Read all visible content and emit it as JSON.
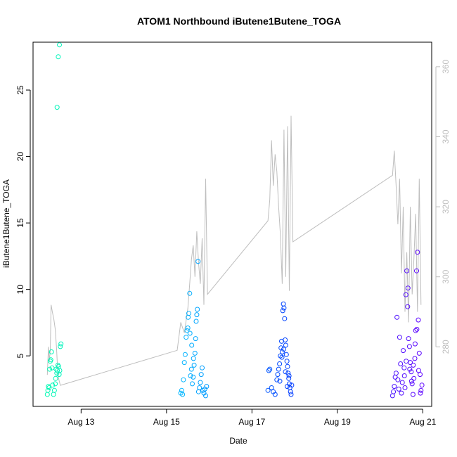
{
  "chart_data": {
    "type": "scatter",
    "title": "ATOM1 Northbound iButene1Butene_TOGA",
    "xlabel": "Date",
    "ylabel": "iButene1Butene_TOGA",
    "xlim": [
      "2016-08-11T21:00",
      "2016-08-21T05:00"
    ],
    "ylim": [
      1.2,
      28.6
    ],
    "y2lim": [
      263,
      367
    ],
    "x_ticks": [
      {
        "value": "2016-08-13",
        "label": "Aug 13"
      },
      {
        "value": "2016-08-15",
        "label": "Aug 15"
      },
      {
        "value": "2016-08-17",
        "label": "Aug 17"
      },
      {
        "value": "2016-08-19",
        "label": "Aug 19"
      },
      {
        "value": "2016-08-21",
        "label": "Aug 21"
      }
    ],
    "y_ticks": [
      5,
      10,
      15,
      20,
      25
    ],
    "y2_ticks": [
      280,
      300,
      320,
      340,
      360
    ],
    "grid": false,
    "legend": "none",
    "colors": {
      "points_gradient": [
        "#00ffaa",
        "#00c8ff",
        "#0033ff",
        "#6600ff"
      ],
      "secondary_line": "#bebebe",
      "secondary_axis": "#bebebe"
    },
    "series": [
      {
        "marker": "open-circle",
        "points": [
          [
            "2016-08-12T05:00",
            2.1
          ],
          [
            "2016-08-12T05:20",
            2.4
          ],
          [
            "2016-08-12T05:40",
            2.7
          ],
          [
            "2016-08-12T06:00",
            2.6
          ],
          [
            "2016-08-12T06:20",
            4.0
          ],
          [
            "2016-08-12T06:40",
            4.6
          ],
          [
            "2016-08-12T07:00",
            4.7
          ],
          [
            "2016-08-12T07:20",
            5.3
          ],
          [
            "2016-08-12T07:40",
            4.1
          ],
          [
            "2016-08-12T08:00",
            2.8
          ],
          [
            "2016-08-12T08:30",
            2.1
          ],
          [
            "2016-08-12T09:00",
            2.4
          ],
          [
            "2016-08-12T09:30",
            2.9
          ],
          [
            "2016-08-12T09:40",
            3.3
          ],
          [
            "2016-08-12T10:00",
            4.0
          ],
          [
            "2016-08-12T10:20",
            3.7
          ],
          [
            "2016-08-12T10:40",
            3.9
          ],
          [
            "2016-08-12T11:00",
            4.3
          ],
          [
            "2016-08-12T11:20",
            4.2
          ],
          [
            "2016-08-12T11:40",
            3.6
          ],
          [
            "2016-08-12T12:00",
            3.9
          ],
          [
            "2016-08-12T12:20",
            5.7
          ],
          [
            "2016-08-12T12:40",
            5.9
          ],
          [
            "2016-08-12T10:30",
            23.7
          ],
          [
            "2016-08-12T11:10",
            27.5
          ],
          [
            "2016-08-12T11:50",
            28.4
          ],
          [
            "2016-08-15T08:00",
            2.2
          ],
          [
            "2016-08-15T08:30",
            2.4
          ],
          [
            "2016-08-15T09:00",
            2.1
          ],
          [
            "2016-08-15T09:30",
            3.2
          ],
          [
            "2016-08-15T10:00",
            4.5
          ],
          [
            "2016-08-15T10:30",
            5.1
          ],
          [
            "2016-08-15T11:00",
            6.4
          ],
          [
            "2016-08-15T11:30",
            6.9
          ],
          [
            "2016-08-15T12:00",
            7.1
          ],
          [
            "2016-08-15T12:30",
            8.2
          ],
          [
            "2016-08-15T13:00",
            9.7
          ],
          [
            "2016-08-15T13:30",
            3.5
          ],
          [
            "2016-08-15T14:00",
            4.0
          ],
          [
            "2016-08-15T14:30",
            2.9
          ],
          [
            "2016-08-15T15:00",
            3.4
          ],
          [
            "2016-08-15T15:30",
            4.3
          ],
          [
            "2016-08-15T16:00",
            5.2
          ],
          [
            "2016-08-15T16:20",
            6.3
          ],
          [
            "2016-08-15T16:40",
            7.6
          ],
          [
            "2016-08-15T17:00",
            8.1
          ],
          [
            "2016-08-15T17:20",
            8.5
          ],
          [
            "2016-08-15T17:40",
            12.1
          ],
          [
            "2016-08-15T18:00",
            2.3
          ],
          [
            "2016-08-15T18:30",
            2.6
          ],
          [
            "2016-08-15T19:00",
            3.0
          ],
          [
            "2016-08-15T19:30",
            3.6
          ],
          [
            "2016-08-15T20:00",
            4.1
          ],
          [
            "2016-08-15T20:30",
            2.4
          ],
          [
            "2016-08-15T21:00",
            2.2
          ],
          [
            "2016-08-15T21:30",
            2.5
          ],
          [
            "2016-08-15T22:00",
            2.0
          ],
          [
            "2016-08-15T22:30",
            2.7
          ],
          [
            "2016-08-15T12:10",
            7.9
          ],
          [
            "2016-08-15T13:10",
            6.7
          ],
          [
            "2016-08-15T14:10",
            5.8
          ],
          [
            "2016-08-15T15:10",
            4.8
          ],
          [
            "2016-08-17T09:00",
            2.4
          ],
          [
            "2016-08-17T09:30",
            3.9
          ],
          [
            "2016-08-17T10:00",
            4.0
          ],
          [
            "2016-08-17T11:00",
            2.6
          ],
          [
            "2016-08-17T12:00",
            2.3
          ],
          [
            "2016-08-17T13:00",
            2.1
          ],
          [
            "2016-08-17T14:00",
            3.2
          ],
          [
            "2016-08-17T14:30",
            3.6
          ],
          [
            "2016-08-17T15:00",
            4.0
          ],
          [
            "2016-08-17T15:30",
            4.4
          ],
          [
            "2016-08-17T16:00",
            5.0
          ],
          [
            "2016-08-17T16:20",
            5.6
          ],
          [
            "2016-08-17T16:40",
            6.1
          ],
          [
            "2016-08-17T17:00",
            5.3
          ],
          [
            "2016-08-17T17:20",
            8.4
          ],
          [
            "2016-08-17T17:40",
            8.9
          ],
          [
            "2016-08-17T18:00",
            8.6
          ],
          [
            "2016-08-17T18:20",
            7.8
          ],
          [
            "2016-08-17T18:40",
            6.2
          ],
          [
            "2016-08-17T19:00",
            5.8
          ],
          [
            "2016-08-17T19:20",
            5.1
          ],
          [
            "2016-08-17T19:40",
            4.6
          ],
          [
            "2016-08-17T20:00",
            4.2
          ],
          [
            "2016-08-17T20:20",
            3.7
          ],
          [
            "2016-08-17T20:40",
            3.3
          ],
          [
            "2016-08-17T21:00",
            2.9
          ],
          [
            "2016-08-17T21:20",
            2.6
          ],
          [
            "2016-08-17T21:40",
            2.3
          ],
          [
            "2016-08-17T22:00",
            2.1
          ],
          [
            "2016-08-17T22:20",
            2.8
          ],
          [
            "2016-08-17T15:40",
            3.1
          ],
          [
            "2016-08-17T16:50",
            4.9
          ],
          [
            "2016-08-17T17:50",
            5.5
          ],
          [
            "2016-08-17T18:50",
            3.8
          ],
          [
            "2016-08-17T19:50",
            2.7
          ],
          [
            "2016-08-17T20:50",
            3.5
          ],
          [
            "2016-08-20T07:00",
            2.0
          ],
          [
            "2016-08-20T07:30",
            2.3
          ],
          [
            "2016-08-20T08:00",
            2.7
          ],
          [
            "2016-08-20T08:30",
            3.4
          ],
          [
            "2016-08-20T09:00",
            3.7
          ],
          [
            "2016-08-20T09:30",
            7.9
          ],
          [
            "2016-08-20T10:00",
            3.2
          ],
          [
            "2016-08-20T10:30",
            2.5
          ],
          [
            "2016-08-20T11:00",
            6.4
          ],
          [
            "2016-08-20T11:30",
            4.4
          ],
          [
            "2016-08-20T12:00",
            2.2
          ],
          [
            "2016-08-20T12:30",
            3.0
          ],
          [
            "2016-08-20T13:00",
            5.4
          ],
          [
            "2016-08-20T13:30",
            4.1
          ],
          [
            "2016-08-20T14:00",
            2.6
          ],
          [
            "2016-08-20T14:30",
            9.6
          ],
          [
            "2016-08-20T15:00",
            11.4
          ],
          [
            "2016-08-20T15:30",
            8.7
          ],
          [
            "2016-08-20T16:00",
            6.3
          ],
          [
            "2016-08-20T16:30",
            5.7
          ],
          [
            "2016-08-20T17:00",
            4.5
          ],
          [
            "2016-08-20T17:30",
            3.8
          ],
          [
            "2016-08-20T18:00",
            2.9
          ],
          [
            "2016-08-20T18:30",
            2.1
          ],
          [
            "2016-08-20T19:00",
            3.3
          ],
          [
            "2016-08-20T19:30",
            4.8
          ],
          [
            "2016-08-20T20:00",
            6.9
          ],
          [
            "2016-08-20T20:30",
            11.4
          ],
          [
            "2016-08-20T21:00",
            12.8
          ],
          [
            "2016-08-20T21:30",
            7.7
          ],
          [
            "2016-08-20T22:00",
            5.2
          ],
          [
            "2016-08-20T22:30",
            3.6
          ],
          [
            "2016-08-20T23:00",
            2.4
          ],
          [
            "2016-08-20T23:30",
            2.8
          ],
          [
            "2016-08-20T15:40",
            10.1
          ],
          [
            "2016-08-20T16:40",
            4.0
          ],
          [
            "2016-08-20T17:40",
            3.1
          ],
          [
            "2016-08-20T18:40",
            4.3
          ],
          [
            "2016-08-20T19:40",
            5.9
          ],
          [
            "2016-08-20T20:40",
            7.0
          ],
          [
            "2016-08-20T21:40",
            3.9
          ],
          [
            "2016-08-20T22:40",
            2.2
          ],
          [
            "2016-08-20T13:40",
            3.5
          ],
          [
            "2016-08-20T14:40",
            4.6
          ]
        ]
      }
    ],
    "secondary_series": {
      "axis": "right",
      "style": "line",
      "points": [
        [
          "2016-08-12T05:00",
          272
        ],
        [
          "2016-08-12T05:40",
          280
        ],
        [
          "2016-08-12T06:10",
          276
        ],
        [
          "2016-08-12T06:40",
          279
        ],
        [
          "2016-08-12T07:10",
          292
        ],
        [
          "2016-08-12T07:50",
          290
        ],
        [
          "2016-08-12T08:40",
          288
        ],
        [
          "2016-08-12T09:30",
          285
        ],
        [
          "2016-08-12T10:10",
          280
        ],
        [
          "2016-08-12T10:40",
          275
        ],
        [
          "2016-08-12T11:20",
          271
        ],
        [
          "2016-08-12T12:20",
          269
        ],
        [
          "2016-08-15T06:00",
          279
        ],
        [
          "2016-08-15T08:00",
          287
        ],
        [
          "2016-08-15T10:00",
          284
        ],
        [
          "2016-08-15T12:00",
          291
        ],
        [
          "2016-08-15T13:00",
          298
        ],
        [
          "2016-08-15T14:00",
          305
        ],
        [
          "2016-08-15T15:00",
          309
        ],
        [
          "2016-08-15T16:00",
          300
        ],
        [
          "2016-08-15T17:00",
          313
        ],
        [
          "2016-08-15T18:00",
          304
        ],
        [
          "2016-08-15T19:00",
          298
        ],
        [
          "2016-08-15T20:00",
          311
        ],
        [
          "2016-08-15T21:00",
          292
        ],
        [
          "2016-08-15T22:00",
          328
        ],
        [
          "2016-08-15T23:00",
          295
        ],
        [
          "2016-08-17T09:00",
          316
        ],
        [
          "2016-08-17T10:00",
          322
        ],
        [
          "2016-08-17T11:00",
          339
        ],
        [
          "2016-08-17T12:00",
          326
        ],
        [
          "2016-08-17T13:00",
          335
        ],
        [
          "2016-08-17T14:00",
          330
        ],
        [
          "2016-08-17T15:00",
          320
        ],
        [
          "2016-08-17T16:00",
          312
        ],
        [
          "2016-08-17T17:00",
          298
        ],
        [
          "2016-08-17T18:00",
          342
        ],
        [
          "2016-08-17T19:00",
          300
        ],
        [
          "2016-08-17T20:00",
          343
        ],
        [
          "2016-08-17T21:00",
          296
        ],
        [
          "2016-08-17T22:00",
          346
        ],
        [
          "2016-08-17T23:00",
          310
        ],
        [
          "2016-08-20T07:00",
          329
        ],
        [
          "2016-08-20T08:00",
          336
        ],
        [
          "2016-08-20T09:00",
          326
        ],
        [
          "2016-08-20T10:00",
          315
        ],
        [
          "2016-08-20T11:00",
          328
        ],
        [
          "2016-08-20T12:00",
          301
        ],
        [
          "2016-08-20T13:00",
          320
        ],
        [
          "2016-08-20T14:00",
          290
        ],
        [
          "2016-08-20T15:00",
          307
        ],
        [
          "2016-08-20T16:00",
          287
        ],
        [
          "2016-08-20T17:00",
          320
        ],
        [
          "2016-08-20T18:00",
          295
        ],
        [
          "2016-08-20T19:00",
          305
        ],
        [
          "2016-08-20T20:00",
          318
        ],
        [
          "2016-08-20T21:00",
          290
        ],
        [
          "2016-08-20T22:00",
          328
        ],
        [
          "2016-08-20T23:00",
          292
        ]
      ]
    }
  }
}
